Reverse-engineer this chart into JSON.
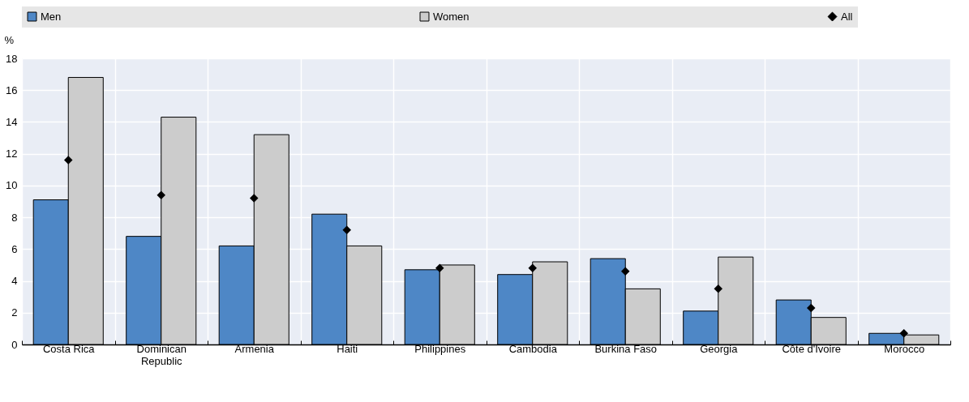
{
  "chart_data": {
    "type": "bar",
    "ylabel": "%",
    "categories": [
      "Costa Rica",
      "Dominican Republic",
      "Armenia",
      "Haiti",
      "Philippines",
      "Cambodia",
      "Burkina Faso",
      "Georgia",
      "Côte d'Ivoire",
      "Morocco"
    ],
    "series": [
      {
        "name": "Men",
        "color": "#4e87c6",
        "values": [
          9.1,
          6.8,
          6.2,
          8.2,
          4.7,
          4.4,
          5.4,
          2.1,
          2.8,
          0.7
        ]
      },
      {
        "name": "Women",
        "color": "#cccccc",
        "values": [
          16.8,
          14.3,
          13.2,
          6.2,
          5.0,
          5.2,
          3.5,
          5.5,
          1.7,
          0.6
        ]
      },
      {
        "name": "All",
        "type": "scatter",
        "marker": "diamond",
        "color": "#000000",
        "values": [
          11.6,
          9.4,
          9.2,
          7.2,
          4.8,
          4.8,
          4.6,
          3.5,
          2.3,
          0.7
        ]
      }
    ],
    "ylim": [
      0,
      18
    ],
    "yticks": [
      0,
      2,
      4,
      6,
      8,
      10,
      12,
      14,
      16,
      18
    ],
    "grid": true,
    "legend": "top"
  }
}
